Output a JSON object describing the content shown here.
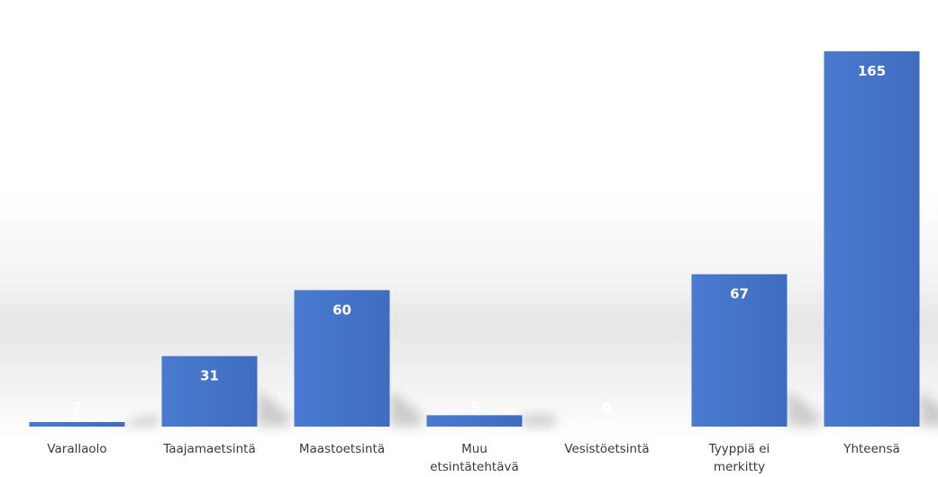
{
  "colors": {
    "bar": "#4472c4",
    "bar_light": "#5a86d6",
    "label": "#ffffff",
    "axis_text": "#3a3a3a"
  },
  "chart_data": {
    "type": "bar",
    "categories": [
      "Varallaolo",
      "Taajamaetsintä",
      "Maastoetsintä",
      "Muu etsintätehtävä",
      "Vesistöetsintä",
      "Tyyppiä ei merkitty",
      "Yhteensä"
    ],
    "category_lines": [
      [
        "Varallaolo"
      ],
      [
        "Taajamaetsintä"
      ],
      [
        "Maastoetsintä"
      ],
      [
        "Muu",
        "etsintätehtävä"
      ],
      [
        "Vesistöetsintä"
      ],
      [
        "Tyyppiä ei",
        "merkitty"
      ],
      [
        "Yhteensä"
      ]
    ],
    "values": [
      2,
      31,
      60,
      5,
      0,
      67,
      165
    ],
    "data_labels": [
      "2",
      "31",
      "60",
      "5",
      "0",
      "67",
      "165"
    ],
    "ylim": [
      0,
      165
    ],
    "grid": false,
    "legend": "none",
    "title": "",
    "xlabel": "",
    "ylabel": ""
  }
}
